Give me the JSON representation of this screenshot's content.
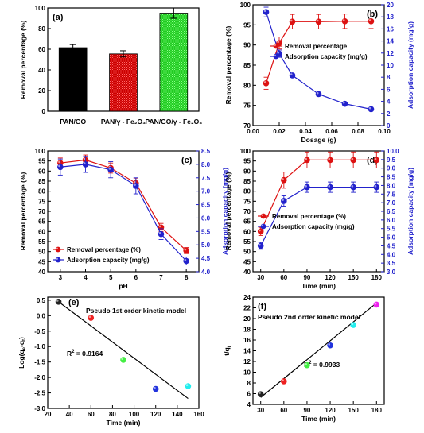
{
  "chart_data": [
    {
      "id": "a",
      "panel_label": "(a)",
      "type": "bar",
      "categories": [
        "PAN/GO",
        "PAN/γ - Fe₂O₃",
        "PAN/GO/γ - Fe₂O₃"
      ],
      "values": [
        61.5,
        55.5,
        95
      ],
      "errors": [
        3,
        3,
        5
      ],
      "colors": [
        "#000000",
        "#cc0000",
        "#22cc22"
      ],
      "ylabel": "Removal percentage (%)",
      "ylim": [
        0,
        100
      ],
      "yticks": [
        "0",
        "20",
        "40",
        "60",
        "80",
        "100"
      ]
    },
    {
      "id": "b",
      "panel_label": "(b)",
      "type": "line",
      "xlabel": "Dosage (g)",
      "ylabel": "Removal percentage (%)",
      "y2label": "Adsorption capacity (mg/g)",
      "xlim": [
        0,
        0.1
      ],
      "ylim": [
        70,
        100
      ],
      "y2lim": [
        0,
        20
      ],
      "xticks": [
        "0.00",
        "0.02",
        "0.04",
        "0.06",
        "0.08",
        "0.10"
      ],
      "yticks": [
        "70",
        "75",
        "80",
        "85",
        "90",
        "95",
        "100"
      ],
      "y2ticks": [
        "0",
        "2",
        "4",
        "6",
        "8",
        "10",
        "12",
        "14",
        "16",
        "18",
        "20"
      ],
      "legend": [
        "Removal percentage",
        "Adsorption capacity (mg/g)"
      ],
      "legend_position": "top-right",
      "series": [
        {
          "name": "Removal percentage",
          "axis": "left",
          "color": "#dd1111",
          "x": [
            0.01,
            0.02,
            0.03,
            0.05,
            0.07,
            0.09
          ],
          "y": [
            80.5,
            90.5,
            95.8,
            95.8,
            95.9,
            95.9
          ],
          "err": [
            1.5,
            1.5,
            1.8,
            1.8,
            1.8,
            1.8
          ]
        },
        {
          "name": "Adsorption capacity (mg/g)",
          "axis": "right",
          "color": "#2222cc",
          "x": [
            0.01,
            0.02,
            0.03,
            0.05,
            0.07,
            0.09
          ],
          "y": [
            18.8,
            11.9,
            8.3,
            5.2,
            3.6,
            2.7
          ],
          "err": [
            0.8,
            0.6,
            0.3,
            0.3,
            0.2,
            0.2
          ]
        }
      ]
    },
    {
      "id": "c",
      "panel_label": "(c)",
      "type": "line",
      "xlabel": "pH",
      "ylabel": "Removal percentage (%)",
      "y2label": "Adsorption capacity (mg/g)",
      "xlim": [
        2.5,
        8.5
      ],
      "ylim": [
        40,
        100
      ],
      "y2lim": [
        4.0,
        8.5
      ],
      "xticks": [
        "3",
        "4",
        "5",
        "6",
        "7",
        "8"
      ],
      "yticks": [
        "40",
        "45",
        "50",
        "55",
        "60",
        "65",
        "70",
        "75",
        "80",
        "85",
        "90",
        "95",
        "100"
      ],
      "y2ticks": [
        "4.0",
        "4.5",
        "5.0",
        "5.5",
        "6.0",
        "6.5",
        "7.0",
        "7.5",
        "8.0",
        "8.5"
      ],
      "legend": [
        "Removal percentage (%)",
        "Adsorption capacity (mg/g)"
      ],
      "legend_position": "bottom-left",
      "series": [
        {
          "name": "Removal percentage (%)",
          "axis": "left",
          "color": "#dd1111",
          "x": [
            3,
            4,
            5,
            6,
            7,
            8
          ],
          "y": [
            94,
            95.5,
            91.5,
            84,
            62,
            50.5
          ],
          "err": [
            2.5,
            2.5,
            2.5,
            2.5,
            2,
            1.5
          ]
        },
        {
          "name": "Adsorption capacity (mg/g)",
          "axis": "right",
          "color": "#2222cc",
          "x": [
            3,
            4,
            5,
            6,
            7,
            8
          ],
          "y": [
            7.9,
            8.0,
            7.8,
            7.2,
            5.4,
            4.4
          ],
          "err": [
            0.3,
            0.3,
            0.3,
            0.3,
            0.2,
            0.15
          ]
        }
      ]
    },
    {
      "id": "d",
      "panel_label": "(d)",
      "type": "line",
      "xlabel": "Time (min)",
      "ylabel": "Removal percentage (%)",
      "y2label": "Adsorption capacity (mg/g)",
      "xlim": [
        20,
        190
      ],
      "ylim": [
        40,
        100
      ],
      "y2lim": [
        3.0,
        10.0
      ],
      "xticks": [
        "30",
        "60",
        "90",
        "120",
        "150",
        "180"
      ],
      "yticks": [
        "40",
        "45",
        "50",
        "55",
        "60",
        "65",
        "70",
        "75",
        "80",
        "85",
        "90",
        "95",
        "100"
      ],
      "y2ticks": [
        "3.0",
        "3.5",
        "4.0",
        "4.5",
        "5.0",
        "5.5",
        "6.0",
        "6.5",
        "7.0",
        "7.5",
        "8.0",
        "8.5",
        "9.0",
        "9.5",
        "10.0"
      ],
      "legend": [
        "Removal percentage (%)",
        "Adsorption capacity (mg/g)"
      ],
      "legend_position": "middle-right",
      "series": [
        {
          "name": "Removal percentage (%)",
          "axis": "left",
          "color": "#dd1111",
          "x": [
            30,
            60,
            90,
            120,
            150,
            180
          ],
          "y": [
            60,
            85.5,
            95.5,
            95.5,
            95.5,
            95.5
          ],
          "err": [
            2,
            4,
            4,
            4,
            4,
            4
          ]
        },
        {
          "name": "Adsorption capacity (mg/g)",
          "axis": "right",
          "color": "#2222cc",
          "x": [
            30,
            60,
            90,
            120,
            150,
            180
          ],
          "y": [
            4.5,
            7.1,
            7.9,
            7.9,
            7.9,
            7.9
          ],
          "err": [
            0.2,
            0.3,
            0.3,
            0.3,
            0.3,
            0.3
          ]
        }
      ]
    },
    {
      "id": "e",
      "panel_label": "(e)",
      "type": "scatter",
      "annotation": "Pseudo 1st order kinetic model",
      "r2_label": "R",
      "r2_value": " = 0.9164",
      "xlabel": "Time (min)",
      "ylabel": "Log(q - q )",
      "ylabel_sub": [
        "e",
        "t"
      ],
      "xlim": [
        20,
        160
      ],
      "ylim": [
        -3.0,
        0.6
      ],
      "xticks": [
        "20",
        "40",
        "60",
        "80",
        "100",
        "120",
        "140",
        "160"
      ],
      "yticks": [
        "-3.0",
        "-2.5",
        "-2.0",
        "-1.5",
        "-1.0",
        "-0.5",
        "0.0",
        "0.5"
      ],
      "points": [
        {
          "x": 30,
          "y": 0.45,
          "color": "#222222"
        },
        {
          "x": 60,
          "y": -0.07,
          "color": "#ee2222"
        },
        {
          "x": 90,
          "y": -1.43,
          "color": "#44ee44"
        },
        {
          "x": 120,
          "y": -2.37,
          "color": "#2233dd"
        },
        {
          "x": 150,
          "y": -2.28,
          "color": "#22eeee"
        }
      ],
      "fit_line": {
        "x": [
          30,
          150
        ],
        "y": [
          0.45,
          -2.68
        ]
      }
    },
    {
      "id": "f",
      "panel_label": "(f)",
      "type": "scatter",
      "annotation": "Pseudo 2nd order kinetic model",
      "r2_label": "R",
      "r2_value": " = 0.9933",
      "xlabel": "Time (min)",
      "ylabel": "t/q",
      "ylabel_sub": [
        "t"
      ],
      "xlim": [
        20,
        190
      ],
      "ylim": [
        4,
        24
      ],
      "xticks": [
        "30",
        "60",
        "90",
        "120",
        "150",
        "180"
      ],
      "yticks": [
        "4",
        "6",
        "8",
        "10",
        "12",
        "14",
        "16",
        "18",
        "20",
        "22",
        "24"
      ],
      "points": [
        {
          "x": 30,
          "y": 5.9,
          "color": "#222222"
        },
        {
          "x": 60,
          "y": 8.3,
          "color": "#ee2222"
        },
        {
          "x": 90,
          "y": 11.3,
          "color": "#44ee44"
        },
        {
          "x": 120,
          "y": 15.0,
          "color": "#2233dd"
        },
        {
          "x": 150,
          "y": 18.8,
          "color": "#22eeee"
        },
        {
          "x": 180,
          "y": 22.6,
          "color": "#ee22ee"
        }
      ],
      "fit_line": {
        "x": [
          30,
          180
        ],
        "y": [
          5.3,
          22.9
        ]
      }
    }
  ]
}
